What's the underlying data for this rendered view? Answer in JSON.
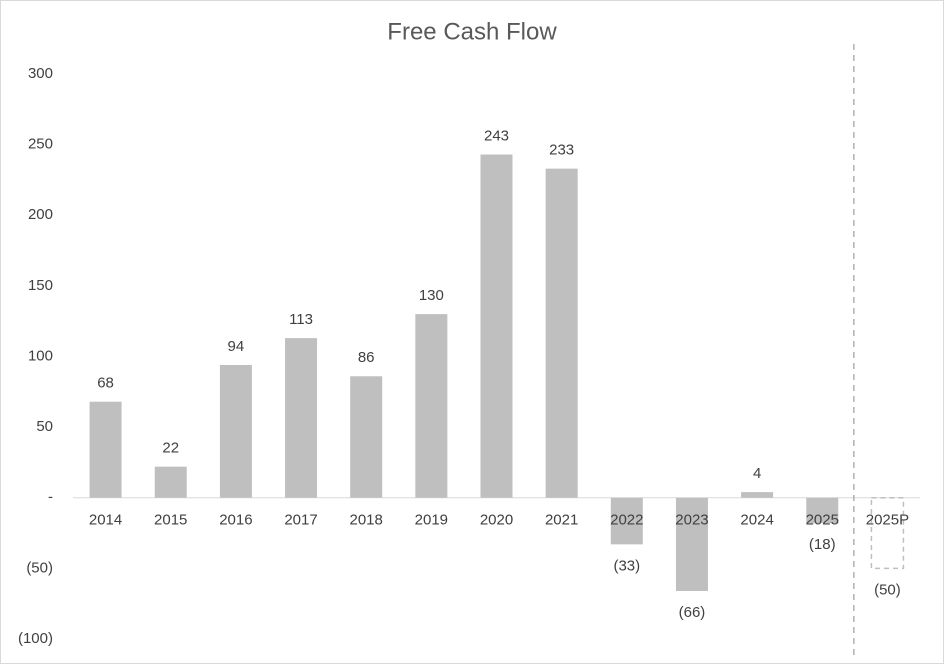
{
  "chart_data": {
    "type": "bar",
    "title": "Free Cash Flow",
    "categories": [
      "2014",
      "2015",
      "2016",
      "2017",
      "2018",
      "2019",
      "2020",
      "2021",
      "2022",
      "2023",
      "2024",
      "2025",
      "2025P"
    ],
    "values": [
      68,
      22,
      94,
      113,
      86,
      130,
      243,
      233,
      -33,
      -66,
      4,
      -18,
      -50
    ],
    "value_labels": [
      "68",
      "22",
      "94",
      "113",
      "86",
      "130",
      "243",
      "233",
      "(33)",
      "(66)",
      "4",
      "(18)",
      "(50)"
    ],
    "bar_style": [
      "solid",
      "solid",
      "solid",
      "solid",
      "solid",
      "solid",
      "solid",
      "solid",
      "solid",
      "solid",
      "solid",
      "solid",
      "dashed"
    ],
    "color": "#bfbfbf",
    "ylim": [
      -100,
      300
    ],
    "yticks": [
      {
        "value": -100,
        "label": "(100)"
      },
      {
        "value": -50,
        "label": "(50)"
      },
      {
        "value": 0,
        "label": "-"
      },
      50,
      100,
      150,
      200,
      250,
      300
    ],
    "grid": false
  }
}
